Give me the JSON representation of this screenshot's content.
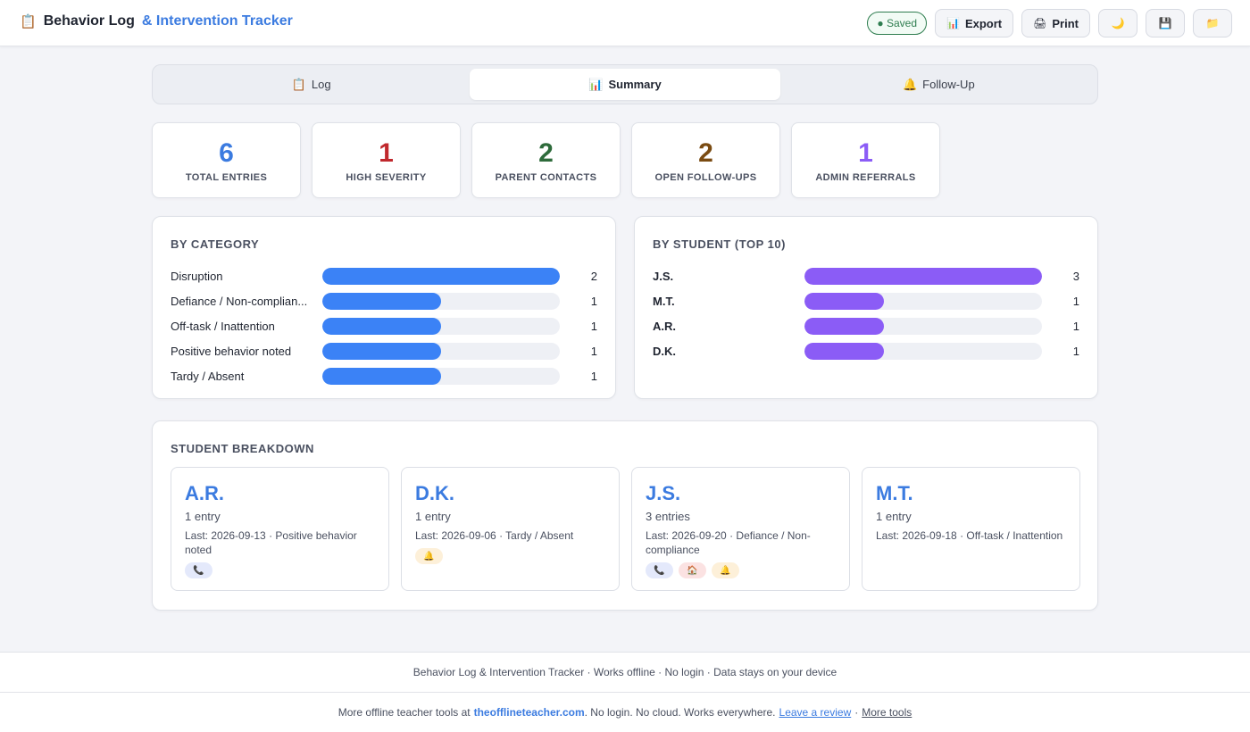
{
  "header": {
    "icon": "clipboard-icon",
    "title": "Behavior Log",
    "title_accent": "& Intervention Tracker",
    "saved": "● Saved",
    "export_label": "Export",
    "print_label": "Print",
    "theme_icon": "moon-icon",
    "save_icon": "floppy-disk-icon",
    "open_icon": "folder-icon"
  },
  "tabs": [
    {
      "label": "Log",
      "icon": "clipboard-icon",
      "active": false
    },
    {
      "label": "Summary",
      "icon": "bar-chart-icon",
      "active": true
    },
    {
      "label": "Follow-Up",
      "icon": "bell-icon",
      "active": false
    }
  ],
  "stats": [
    {
      "value": "6",
      "label": "TOTAL ENTRIES",
      "color": "#3b7be0"
    },
    {
      "value": "1",
      "label": "HIGH SEVERITY",
      "color": "#c0282d"
    },
    {
      "value": "2",
      "label": "PARENT CONTACTS",
      "color": "#2e6b3b"
    },
    {
      "value": "2",
      "label": "OPEN FOLLOW-UPS",
      "color": "#7a4b12"
    },
    {
      "value": "1",
      "label": "ADMIN REFERRALS",
      "color": "#8b5cf6"
    }
  ],
  "by_category": {
    "title": "BY CATEGORY",
    "color": "#3b82f6",
    "max": 2,
    "items": [
      {
        "name": "Disruption",
        "count": 2
      },
      {
        "name": "Defiance / Non-complian...",
        "count": 1
      },
      {
        "name": "Off-task / Inattention",
        "count": 1
      },
      {
        "name": "Positive behavior noted",
        "count": 1
      },
      {
        "name": "Tardy / Absent",
        "count": 1
      }
    ]
  },
  "by_student": {
    "title": "BY STUDENT (TOP 10)",
    "color": "#8b5cf6",
    "max": 3,
    "items": [
      {
        "name": "J.S.",
        "count": 3
      },
      {
        "name": "M.T.",
        "count": 1
      },
      {
        "name": "A.R.",
        "count": 1
      },
      {
        "name": "D.K.",
        "count": 1
      }
    ]
  },
  "breakdown": {
    "title": "STUDENT BREAKDOWN",
    "students": [
      {
        "initials": "A.R.",
        "entries": "1 entry",
        "last": "Last: 2026-09-13 · Positive behavior noted",
        "chips": [
          "phone"
        ]
      },
      {
        "initials": "D.K.",
        "entries": "1 entry",
        "last": "Last: 2026-09-06 · Tardy / Absent",
        "chips": [
          "bell"
        ]
      },
      {
        "initials": "J.S.",
        "entries": "3 entries",
        "last": "Last: 2026-09-20 · Defiance / Non-compliance",
        "chips": [
          "phone",
          "home",
          "bell"
        ]
      },
      {
        "initials": "M.T.",
        "entries": "1 entry",
        "last": "Last: 2026-09-18 · Off-task / Inattention",
        "chips": []
      }
    ]
  },
  "footer": {
    "line1": "Behavior Log & Intervention Tracker · Works offline · No login · Data stays on your device",
    "pre": "More offline teacher tools at",
    "site": "theofflineteacher.com",
    "mid": ". No login. No cloud. Works everywhere.",
    "review": "Leave a review",
    "sep": "·",
    "more": "More tools"
  }
}
